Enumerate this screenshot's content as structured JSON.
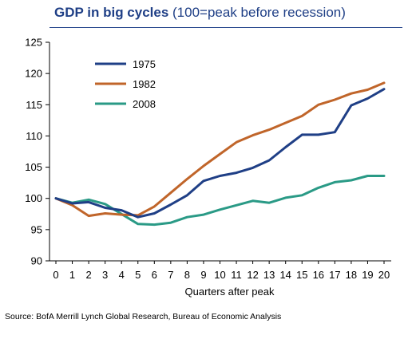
{
  "header": {
    "title_bold": "GDP in big cycles",
    "title_rest": " (100=peak before recession)"
  },
  "source": "Source: BofA Merrill Lynch Global Research, Bureau of Economic Analysis",
  "chart_data": {
    "type": "line",
    "title": "GDP in big cycles (100=peak before recession)",
    "xlabel": "Quarters after peak",
    "ylabel": "",
    "x": [
      0,
      1,
      2,
      3,
      4,
      5,
      6,
      7,
      8,
      9,
      10,
      11,
      12,
      13,
      14,
      15,
      16,
      17,
      18,
      19,
      20
    ],
    "xlim": [
      0,
      20
    ],
    "ylim": [
      90,
      125
    ],
    "yticks": [
      90,
      95,
      100,
      105,
      110,
      115,
      120,
      125
    ],
    "grid": false,
    "legend_position": "top-left",
    "series": [
      {
        "name": "1975",
        "color": "#1f3f86",
        "values": [
          100,
          99.2,
          99.4,
          98.5,
          98.1,
          97.0,
          97.6,
          99.0,
          100.5,
          102.8,
          103.6,
          104.1,
          104.9,
          106.1,
          108.2,
          110.2,
          110.2,
          110.6,
          114.9,
          116.0,
          117.5
        ]
      },
      {
        "name": "1982",
        "color": "#c0652a",
        "values": [
          100,
          98.9,
          97.2,
          97.6,
          97.4,
          97.3,
          98.7,
          100.9,
          103.1,
          105.2,
          107.1,
          109.0,
          110.1,
          111.0,
          112.1,
          113.2,
          115.0,
          115.8,
          116.8,
          117.4,
          118.5
        ]
      },
      {
        "name": "2008",
        "color": "#2a9a86",
        "values": [
          100,
          99.3,
          99.8,
          99.1,
          97.5,
          95.9,
          95.8,
          96.1,
          97.0,
          97.4,
          98.2,
          98.9,
          99.6,
          99.3,
          100.1,
          100.5,
          101.7,
          102.6,
          102.9,
          103.6,
          103.6
        ]
      }
    ]
  }
}
